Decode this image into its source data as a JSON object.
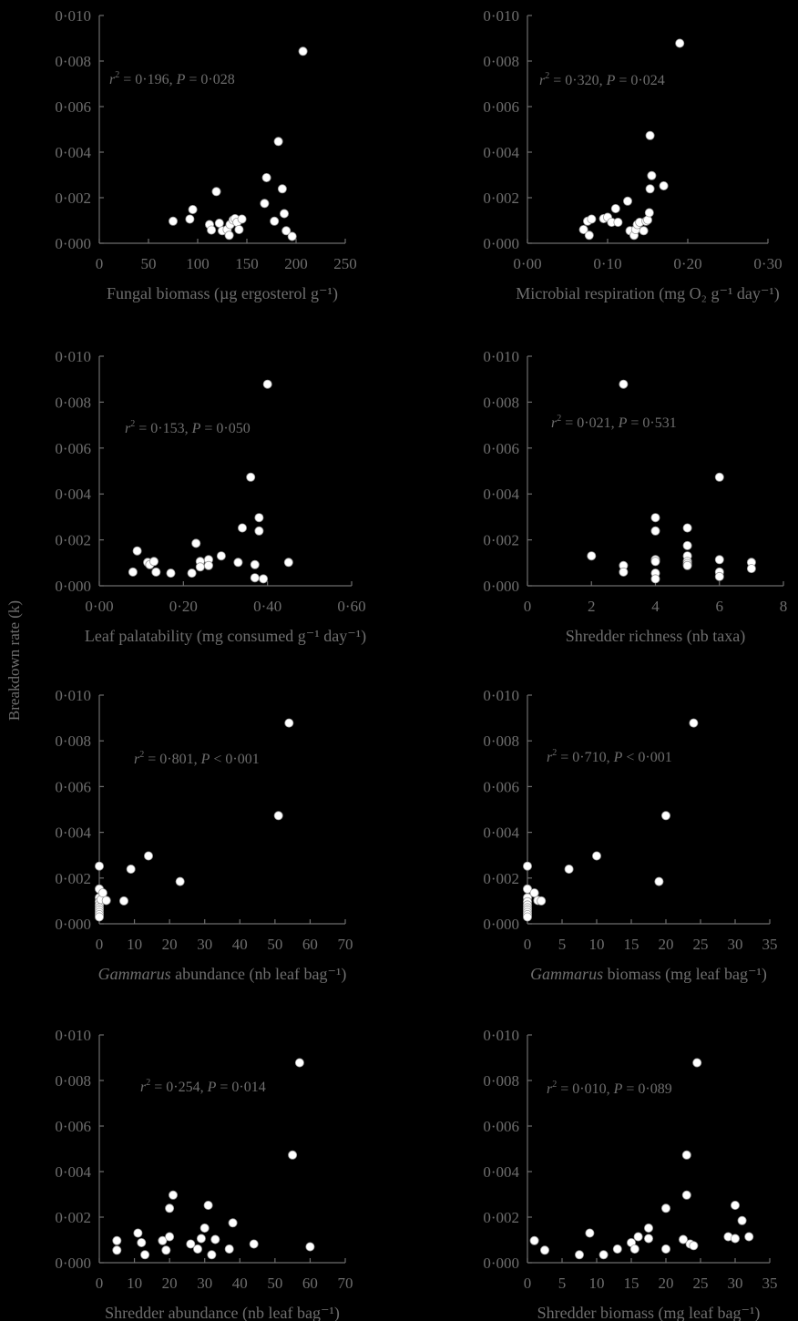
{
  "figure": {
    "ylabel": "Breakdown rate (k)"
  },
  "chart_data": [
    {
      "type": "scatter",
      "xlabel": "Fungal biomass (µg ergosterol g⁻¹)",
      "stat": "r² = 0·196, P = 0·028",
      "xlim": [
        0,
        250
      ],
      "xticks": [
        "0",
        "50",
        "100",
        "150",
        "200",
        "250"
      ],
      "ylim": [
        0,
        0.01
      ],
      "yticks": [
        "0·000",
        "0·002",
        "0·004",
        "0·006",
        "0·008",
        "0·010"
      ],
      "points": [
        [
          75,
          0.00097
        ],
        [
          92,
          0.00106
        ],
        [
          95,
          0.00148
        ],
        [
          112,
          0.00082
        ],
        [
          114,
          0.00058
        ],
        [
          119,
          0.00227
        ],
        [
          122,
          0.00088
        ],
        [
          125,
          0.00055
        ],
        [
          130,
          0.0006
        ],
        [
          132,
          0.00035
        ],
        [
          133,
          0.00082
        ],
        [
          136,
          0.00102
        ],
        [
          138,
          0.00108
        ],
        [
          140,
          0.00092
        ],
        [
          142,
          0.0006
        ],
        [
          145,
          0.00106
        ],
        [
          168,
          0.00175
        ],
        [
          170,
          0.00288
        ],
        [
          178,
          0.00097
        ],
        [
          182,
          0.00447
        ],
        [
          186,
          0.00239
        ],
        [
          188,
          0.0013
        ],
        [
          190,
          0.00055
        ],
        [
          196,
          0.0003
        ],
        [
          207,
          0.00843
        ]
      ]
    },
    {
      "type": "scatter",
      "xlabel": "Microbial respiration (mg O₂ g⁻¹ day⁻¹)",
      "stat": "r² = 0·320, P = 0·024",
      "xlim": [
        0,
        0.3
      ],
      "xticks": [
        "0·00",
        "0·10",
        "0·20",
        "0·30"
      ],
      "ylim": [
        0,
        0.01
      ],
      "yticks": [
        "0·000",
        "0·002",
        "0·004",
        "0·006",
        "0·008",
        "0·010"
      ],
      "points": [
        [
          0.07,
          0.0006
        ],
        [
          0.075,
          0.00097
        ],
        [
          0.077,
          0.00035
        ],
        [
          0.08,
          0.00106
        ],
        [
          0.095,
          0.00108
        ],
        [
          0.1,
          0.00114
        ],
        [
          0.105,
          0.00092
        ],
        [
          0.11,
          0.00152
        ],
        [
          0.113,
          0.00092
        ],
        [
          0.125,
          0.00185
        ],
        [
          0.128,
          0.00055
        ],
        [
          0.133,
          0.00035
        ],
        [
          0.135,
          0.0006
        ],
        [
          0.137,
          0.00082
        ],
        [
          0.14,
          0.00092
        ],
        [
          0.145,
          0.00055
        ],
        [
          0.148,
          0.00097
        ],
        [
          0.15,
          0.00102
        ],
        [
          0.152,
          0.00134
        ],
        [
          0.153,
          0.00473
        ],
        [
          0.153,
          0.00239
        ],
        [
          0.155,
          0.00297
        ],
        [
          0.17,
          0.00252
        ],
        [
          0.19,
          0.00878
        ]
      ]
    },
    {
      "type": "scatter",
      "xlabel": "Leaf palatability (mg consumed g⁻¹ day⁻¹)",
      "stat": "r² = 0·153, P = 0·050",
      "xlim": [
        0,
        0.6
      ],
      "xticks": [
        "0·00",
        "0·20",
        "0·40",
        "0·60"
      ],
      "ylim": [
        0,
        0.01
      ],
      "yticks": [
        "0·000",
        "0·002",
        "0·004",
        "0·006",
        "0·008",
        "0·010"
      ],
      "points": [
        [
          0.08,
          0.0006
        ],
        [
          0.09,
          0.00152
        ],
        [
          0.115,
          0.00102
        ],
        [
          0.12,
          0.00092
        ],
        [
          0.13,
          0.00106
        ],
        [
          0.135,
          0.0006
        ],
        [
          0.17,
          0.00055
        ],
        [
          0.22,
          0.00055
        ],
        [
          0.23,
          0.00185
        ],
        [
          0.24,
          0.00106
        ],
        [
          0.24,
          0.00082
        ],
        [
          0.26,
          0.00114
        ],
        [
          0.26,
          0.00088
        ],
        [
          0.29,
          0.0013
        ],
        [
          0.33,
          0.00102
        ],
        [
          0.34,
          0.00252
        ],
        [
          0.36,
          0.00473
        ],
        [
          0.37,
          0.00035
        ],
        [
          0.38,
          0.00297
        ],
        [
          0.38,
          0.00239
        ],
        [
          0.37,
          0.00092
        ],
        [
          0.39,
          0.0003
        ],
        [
          0.4,
          0.00878
        ],
        [
          0.45,
          0.00102
        ]
      ]
    },
    {
      "type": "scatter",
      "xlabel": "Shredder richness (nb taxa)",
      "stat": "r² = 0·021, P = 0·531",
      "xlim": [
        0,
        8
      ],
      "xticks": [
        "0",
        "2",
        "4",
        "6",
        "8"
      ],
      "ylim": [
        0,
        0.01
      ],
      "yticks": [
        "0·000",
        "0·002",
        "0·004",
        "0·006",
        "0·008",
        "0·010"
      ],
      "points": [
        [
          2,
          0.0013
        ],
        [
          3,
          0.00878
        ],
        [
          3,
          0.00088
        ],
        [
          3,
          0.0006
        ],
        [
          4,
          0.00297
        ],
        [
          4,
          0.00239
        ],
        [
          4,
          0.00114
        ],
        [
          4,
          0.00106
        ],
        [
          4,
          0.00055
        ],
        [
          4,
          0.0003
        ],
        [
          5,
          0.00252
        ],
        [
          5,
          0.00175
        ],
        [
          5,
          0.0013
        ],
        [
          5,
          0.00106
        ],
        [
          5,
          0.00097
        ],
        [
          5,
          0.00088
        ],
        [
          6,
          0.00473
        ],
        [
          6,
          0.00114
        ],
        [
          6,
          0.0006
        ],
        [
          6,
          0.0004
        ],
        [
          7,
          0.00102
        ],
        [
          7,
          0.00075
        ]
      ]
    },
    {
      "type": "scatter",
      "xlabel": "Gammarus abundance (nb leaf bag⁻¹)",
      "stat": "r² = 0·801, P < 0·001",
      "xlim": [
        0,
        70
      ],
      "xticks": [
        "0",
        "10",
        "20",
        "30",
        "40",
        "50",
        "60",
        "70"
      ],
      "ylim": [
        0,
        0.01
      ],
      "yticks": [
        "0·000",
        "0·002",
        "0·004",
        "0·006",
        "0·008",
        "0·010"
      ],
      "points": [
        [
          0,
          0.00252
        ],
        [
          0,
          0.00152
        ],
        [
          0,
          0.00114
        ],
        [
          0,
          0.00097
        ],
        [
          0,
          0.00082
        ],
        [
          0,
          0.0007
        ],
        [
          0,
          0.0006
        ],
        [
          0,
          0.0005
        ],
        [
          0,
          0.0004
        ],
        [
          0,
          0.0003
        ],
        [
          0.5,
          0.00106
        ],
        [
          1,
          0.00135
        ],
        [
          2,
          0.00102
        ],
        [
          7,
          0.001
        ],
        [
          9,
          0.00239
        ],
        [
          14,
          0.00297
        ],
        [
          23,
          0.00185
        ],
        [
          51,
          0.00473
        ],
        [
          54,
          0.00878
        ]
      ]
    },
    {
      "type": "scatter",
      "xlabel": "Gammarus biomass (mg leaf bag⁻¹)",
      "stat": "r² = 0·710, P < 0·001",
      "xlim": [
        0,
        35
      ],
      "xticks": [
        "0",
        "5",
        "10",
        "15",
        "20",
        "25",
        "30",
        "35"
      ],
      "ylim": [
        0,
        0.01
      ],
      "yticks": [
        "0·000",
        "0·002",
        "0·004",
        "0·006",
        "0·008",
        "0·010"
      ],
      "points": [
        [
          0,
          0.00252
        ],
        [
          0,
          0.00152
        ],
        [
          0,
          0.00114
        ],
        [
          0,
          0.00097
        ],
        [
          0,
          0.00082
        ],
        [
          0,
          0.0007
        ],
        [
          0,
          0.0006
        ],
        [
          0,
          0.0005
        ],
        [
          0,
          0.0004
        ],
        [
          0,
          0.0003
        ],
        [
          1,
          0.00135
        ],
        [
          1.5,
          0.00102
        ],
        [
          2,
          0.001
        ],
        [
          6,
          0.00239
        ],
        [
          10,
          0.00297
        ],
        [
          19,
          0.00185
        ],
        [
          20,
          0.00473
        ],
        [
          24,
          0.00878
        ]
      ]
    },
    {
      "type": "scatter",
      "xlabel": "Shredder abundance (nb leaf bag⁻¹)",
      "stat": "r² = 0·254, P = 0·014",
      "xlim": [
        0,
        70
      ],
      "xticks": [
        "0",
        "10",
        "20",
        "30",
        "40",
        "50",
        "60",
        "70"
      ],
      "ylim": [
        0,
        0.01
      ],
      "yticks": [
        "0·000",
        "0·002",
        "0·004",
        "0·006",
        "0·008",
        "0·010"
      ],
      "points": [
        [
          5,
          0.00097
        ],
        [
          5,
          0.00055
        ],
        [
          11,
          0.0013
        ],
        [
          12,
          0.00088
        ],
        [
          13,
          0.00035
        ],
        [
          18,
          0.00097
        ],
        [
          19,
          0.00055
        ],
        [
          20,
          0.00114
        ],
        [
          20,
          0.00239
        ],
        [
          21,
          0.00297
        ],
        [
          26,
          0.00082
        ],
        [
          28,
          0.0006
        ],
        [
          29,
          0.00106
        ],
        [
          30,
          0.00152
        ],
        [
          31,
          0.00252
        ],
        [
          32,
          0.00035
        ],
        [
          33,
          0.00102
        ],
        [
          37,
          0.0006
        ],
        [
          38,
          0.00175
        ],
        [
          44,
          0.00082
        ],
        [
          55,
          0.00473
        ],
        [
          57,
          0.00878
        ],
        [
          60,
          0.0007
        ]
      ]
    },
    {
      "type": "scatter",
      "xlabel": "Shredder biomass (mg leaf bag⁻¹)",
      "stat": "r² = 0·010, P = 0·089",
      "xlim": [
        0,
        35
      ],
      "xticks": [
        "0",
        "5",
        "10",
        "15",
        "20",
        "25",
        "30",
        "35"
      ],
      "ylim": [
        0,
        0.01
      ],
      "yticks": [
        "0·000",
        "0·002",
        "0·004",
        "0·006",
        "0·008",
        "0·010"
      ],
      "points": [
        [
          1,
          0.00097
        ],
        [
          2.5,
          0.00055
        ],
        [
          7.5,
          0.00035
        ],
        [
          9,
          0.0013
        ],
        [
          11,
          0.00035
        ],
        [
          13,
          0.0006
        ],
        [
          15,
          0.00088
        ],
        [
          15.5,
          0.0006
        ],
        [
          16,
          0.00114
        ],
        [
          17.5,
          0.00152
        ],
        [
          17.5,
          0.00106
        ],
        [
          20,
          0.0006
        ],
        [
          20,
          0.00239
        ],
        [
          22.5,
          0.00102
        ],
        [
          23,
          0.00473
        ],
        [
          23,
          0.00297
        ],
        [
          23.5,
          0.00082
        ],
        [
          24,
          0.00075
        ],
        [
          24.5,
          0.00878
        ],
        [
          29,
          0.00114
        ],
        [
          30,
          0.00252
        ],
        [
          30,
          0.00106
        ],
        [
          31,
          0.00185
        ],
        [
          32,
          0.00114
        ]
      ]
    }
  ]
}
